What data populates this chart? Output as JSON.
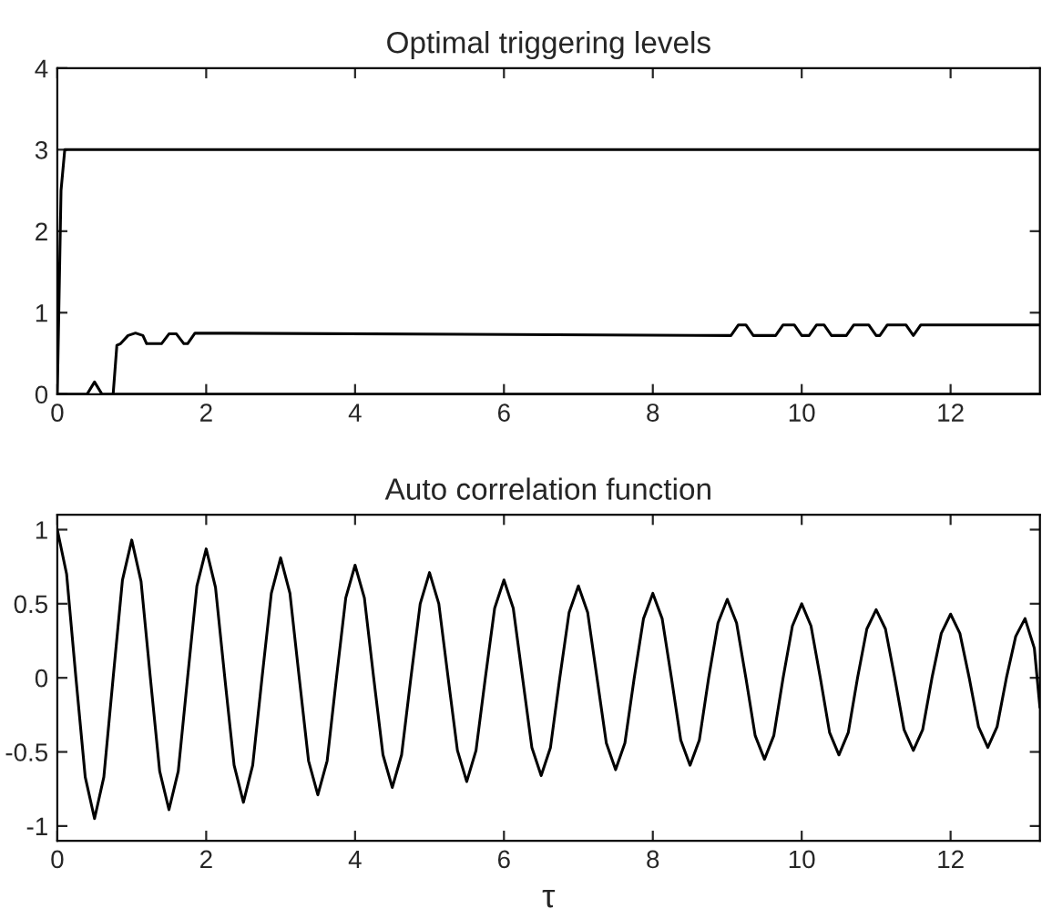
{
  "chart_data": [
    {
      "type": "line",
      "title": "Optimal triggering levels",
      "xlim": [
        0,
        13.2
      ],
      "xticks": [
        0,
        2,
        4,
        6,
        8,
        10,
        12
      ],
      "ylim": [
        0,
        4
      ],
      "yticks": [
        0,
        1,
        2,
        3,
        4
      ],
      "grid": false,
      "legend": false,
      "marker": "none",
      "line_style": "solid",
      "series": [
        {
          "color": "#000000",
          "x": [
            0,
            0.05,
            0.1,
            13.2
          ],
          "values": [
            0,
            2.5,
            3,
            3
          ]
        },
        {
          "color": "#000000",
          "x": [
            0.75,
            0.8,
            0.85,
            0.95,
            1.05,
            1.15,
            1.2,
            1.4,
            1.5,
            1.6,
            1.7,
            1.75,
            1.85,
            9.05,
            9.15,
            9.25,
            9.35,
            9.65,
            9.75,
            9.9,
            10.0,
            10.1,
            10.2,
            10.3,
            10.4,
            10.6,
            10.7,
            10.9,
            11.0,
            11.05,
            11.15,
            11.4,
            11.5,
            11.6,
            13.2
          ],
          "values": [
            0,
            0.6,
            0.62,
            0.72,
            0.75,
            0.72,
            0.62,
            0.62,
            0.74,
            0.74,
            0.62,
            0.62,
            0.75,
            0.72,
            0.85,
            0.85,
            0.72,
            0.72,
            0.85,
            0.85,
            0.72,
            0.72,
            0.85,
            0.85,
            0.72,
            0.72,
            0.85,
            0.85,
            0.72,
            0.72,
            0.85,
            0.85,
            0.72,
            0.85,
            0.85
          ]
        },
        {
          "color": "#000000",
          "x": [
            0,
            0.4,
            0.5,
            0.6,
            13.2
          ],
          "values": [
            0,
            0,
            0.15,
            0,
            0
          ]
        }
      ]
    },
    {
      "type": "line",
      "title": "Auto correlation function",
      "xlabel": "τ",
      "xlim": [
        0,
        13.2
      ],
      "xticks": [
        0,
        2,
        4,
        6,
        8,
        10,
        12
      ],
      "ylim": [
        -1.1,
        1.1
      ],
      "yticks": [
        -1,
        -0.5,
        0,
        0.5,
        1
      ],
      "grid": false,
      "legend": false,
      "marker": "none",
      "line_style": "solid",
      "series": [
        {
          "color": "#000000",
          "x": [
            0,
            0.125,
            0.25,
            0.375,
            0.5,
            0.625,
            0.75,
            0.875,
            1,
            1.125,
            1.25,
            1.375,
            1.5,
            1.625,
            1.75,
            1.875,
            2,
            2.125,
            2.25,
            2.375,
            2.5,
            2.625,
            2.75,
            2.875,
            3,
            3.125,
            3.25,
            3.375,
            3.5,
            3.625,
            3.75,
            3.875,
            4,
            4.125,
            4.25,
            4.375,
            4.5,
            4.625,
            4.75,
            4.875,
            5,
            5.125,
            5.25,
            5.375,
            5.5,
            5.625,
            5.75,
            5.875,
            6,
            6.125,
            6.25,
            6.375,
            6.5,
            6.625,
            6.75,
            6.875,
            7,
            7.125,
            7.25,
            7.375,
            7.5,
            7.625,
            7.75,
            7.875,
            8,
            8.125,
            8.25,
            8.375,
            8.5,
            8.625,
            8.75,
            8.875,
            9,
            9.125,
            9.25,
            9.375,
            9.5,
            9.625,
            9.75,
            9.875,
            10,
            10.125,
            10.25,
            10.375,
            10.5,
            10.625,
            10.75,
            10.875,
            11,
            11.125,
            11.25,
            11.375,
            11.5,
            11.625,
            11.75,
            11.875,
            12,
            12.125,
            12.25,
            12.375,
            12.5,
            12.625,
            12.75,
            12.875,
            13,
            13.125,
            13.2
          ],
          "values": [
            1.0,
            0.7,
            0,
            -0.67,
            -0.95,
            -0.67,
            0,
            0.66,
            0.93,
            0.65,
            0,
            -0.63,
            -0.89,
            -0.63,
            0,
            0.62,
            0.87,
            0.61,
            0,
            -0.59,
            -0.84,
            -0.59,
            0,
            0.57,
            0.81,
            0.57,
            0,
            -0.56,
            -0.79,
            -0.56,
            0,
            0.54,
            0.76,
            0.54,
            0,
            -0.52,
            -0.74,
            -0.52,
            0,
            0.5,
            0.71,
            0.5,
            0,
            -0.49,
            -0.7,
            -0.49,
            0,
            0.47,
            0.66,
            0.47,
            0,
            -0.47,
            -0.66,
            -0.47,
            0,
            0.44,
            0.62,
            0.44,
            0,
            -0.44,
            -0.62,
            -0.44,
            0,
            0.4,
            0.57,
            0.4,
            0,
            -0.42,
            -0.59,
            -0.42,
            0,
            0.37,
            0.53,
            0.37,
            0,
            -0.39,
            -0.55,
            -0.39,
            0,
            0.35,
            0.5,
            0.35,
            0,
            -0.37,
            -0.52,
            -0.37,
            0,
            0.33,
            0.46,
            0.33,
            0,
            -0.35,
            -0.49,
            -0.35,
            0,
            0.3,
            0.43,
            0.3,
            0,
            -0.33,
            -0.47,
            -0.33,
            0,
            0.28,
            0.4,
            0.2,
            -0.2
          ]
        }
      ]
    }
  ]
}
